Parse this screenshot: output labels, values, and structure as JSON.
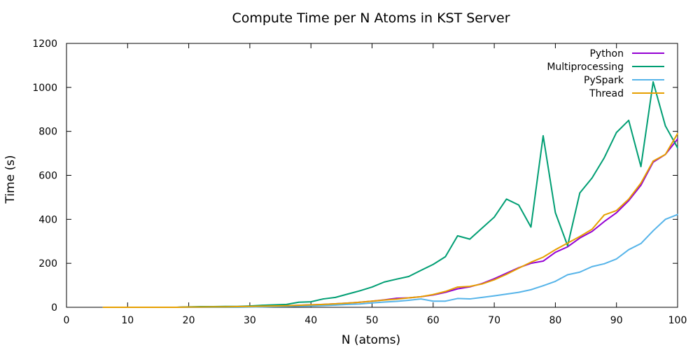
{
  "chart_data": {
    "type": "line",
    "title": "Compute Time per N Atoms in KST Server",
    "xlabel": "N (atoms)",
    "ylabel": "Time (s)",
    "xlim": [
      0,
      100
    ],
    "ylim": [
      0,
      1200
    ],
    "xticks": [
      0,
      10,
      20,
      30,
      40,
      50,
      60,
      70,
      80,
      90,
      100
    ],
    "yticks": [
      0,
      200,
      400,
      600,
      800,
      1000,
      1200
    ],
    "grid": false,
    "legend_position": "top-right",
    "x": [
      6,
      8,
      10,
      12,
      14,
      16,
      18,
      20,
      22,
      24,
      26,
      28,
      30,
      32,
      34,
      36,
      38,
      40,
      42,
      44,
      46,
      48,
      50,
      52,
      54,
      56,
      58,
      60,
      62,
      64,
      66,
      68,
      70,
      72,
      74,
      76,
      78,
      80,
      82,
      84,
      86,
      88,
      90,
      92,
      94,
      96,
      98,
      100
    ],
    "series": [
      {
        "name": "Python",
        "color": "#9400d3",
        "values": [
          0,
          0,
          0,
          0,
          0,
          0,
          0,
          1,
          1,
          2,
          2,
          3,
          4,
          5,
          6,
          7,
          9,
          11,
          13,
          16,
          19,
          23,
          28,
          34,
          41,
          43,
          48,
          56,
          68,
          84,
          93,
          108,
          130,
          155,
          180,
          200,
          210,
          250,
          275,
          315,
          345,
          390,
          430,
          485,
          555,
          660,
          695,
          765
        ]
      },
      {
        "name": "Multiprocessing",
        "color": "#009e73",
        "values": [
          0,
          0,
          0,
          0,
          0,
          0,
          0,
          2,
          3,
          3,
          4,
          4,
          6,
          9,
          11,
          13,
          23,
          25,
          38,
          45,
          60,
          75,
          92,
          115,
          128,
          140,
          168,
          195,
          230,
          325,
          310,
          360,
          410,
          492,
          465,
          365,
          780,
          430,
          280,
          520,
          588,
          680,
          795,
          850,
          640,
          1025,
          825,
          725
        ]
      },
      {
        "name": "PySpark",
        "color": "#56b4e9",
        "values": [
          0,
          0,
          0,
          0,
          0,
          0,
          0,
          0,
          0,
          0,
          0,
          0,
          1,
          2,
          3,
          4,
          5,
          6,
          8,
          10,
          13,
          15,
          20,
          24,
          27,
          32,
          38,
          28,
          28,
          40,
          38,
          45,
          52,
          60,
          68,
          80,
          98,
          118,
          148,
          160,
          185,
          198,
          220,
          262,
          290,
          348,
          400,
          422
        ]
      },
      {
        "name": "Thread",
        "color": "#e69f00",
        "values": [
          0,
          0,
          0,
          0,
          0,
          0,
          0,
          1,
          1,
          2,
          2,
          3,
          4,
          5,
          6,
          7,
          9,
          11,
          13,
          16,
          19,
          23,
          28,
          33,
          37,
          43,
          48,
          58,
          72,
          92,
          95,
          106,
          125,
          150,
          178,
          205,
          228,
          262,
          292,
          322,
          355,
          420,
          440,
          492,
          565,
          665,
          695,
          790
        ]
      }
    ]
  }
}
